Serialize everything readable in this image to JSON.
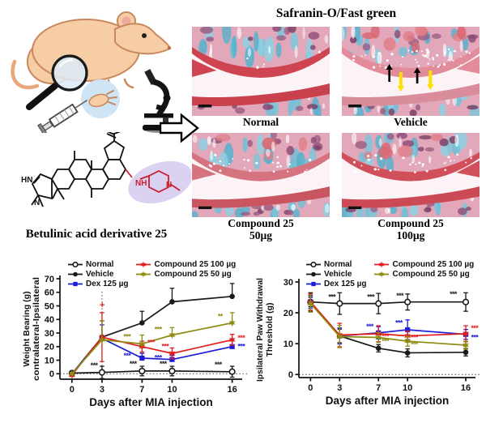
{
  "panel_left": {
    "compound_label": "Betulinic acid derivative 25",
    "structure_atoms": {
      "hn": "HN",
      "n_pyrazole": "N",
      "nh_linker": "NH",
      "n_piperidine": "N"
    },
    "highlight_color": "#b7a4e3",
    "heteroatom_color": "#cc1f2d"
  },
  "histology": {
    "title": "Safranin-O/Fast green",
    "stain_colors": {
      "safranin_red": "#ce4450",
      "fast_green_blue": "#6fc0d8"
    },
    "panels": [
      {
        "id": "normal",
        "caption_line1": "Normal",
        "caption_line2": ""
      },
      {
        "id": "vehicle",
        "caption_line1": "Vehicle",
        "caption_line2": "",
        "markers": [
          "black-up-arrows",
          "yellow-down-arrows"
        ]
      },
      {
        "id": "compound25-50",
        "caption_line1": "Compound 25",
        "caption_line2": "50µg"
      },
      {
        "id": "compound25-100",
        "caption_line1": "Compound 25",
        "caption_line2": "100µg"
      }
    ]
  },
  "chart_data": [
    {
      "type": "line",
      "xlabel": "Days after MIA injection",
      "ylabel_lines": [
        "Weight Bearing (g)",
        "contralateral-Ipsilateral"
      ],
      "x": [
        0,
        3,
        7,
        10,
        16
      ],
      "xlim": [
        -1.2,
        17
      ],
      "ylim": [
        -4,
        70
      ],
      "yticks": [
        0,
        10,
        20,
        30,
        40,
        50,
        60,
        70
      ],
      "grid": false,
      "legend_position": "top",
      "reference_lines": {
        "h_dotted_y": 0,
        "v_dotted_x": 3,
        "v_dotted_ytop": 62
      },
      "series": [
        {
          "name": "Normal",
          "color": "#1a1a1a",
          "marker": "circle-open",
          "err_dir": "both",
          "values": [
            0.5,
            1,
            2,
            2,
            1.5
          ],
          "errors": [
            1.5,
            4.5,
            3.5,
            3.5,
            4
          ]
        },
        {
          "name": "Vehicle",
          "color": "#1a1a1a",
          "marker": "circle",
          "err_dir": "up",
          "values": [
            0,
            27,
            37.5,
            53,
            57
          ],
          "errors": [
            1,
            12,
            8.5,
            10,
            9.5
          ]
        },
        {
          "name": "Dex 125 µg",
          "color": "#1c1cd8",
          "marker": "square",
          "err_dir": "up",
          "values": [
            0,
            26,
            11.5,
            10.5,
            20
          ],
          "errors": [
            1,
            10,
            3.5,
            3,
            5.5
          ]
        },
        {
          "name": "Compound 25 100 µg",
          "color": "#e11d1d",
          "marker": "star",
          "err_dir": "both",
          "values": [
            -1,
            27,
            20,
            15,
            25
          ],
          "errors": [
            1,
            18,
            4,
            4,
            4
          ]
        },
        {
          "name": "Compound 25 50 µg",
          "color": "#8f8c12",
          "marker": "star",
          "err_dir": "up",
          "values": [
            0,
            25,
            22,
            28.5,
            37.5
          ],
          "errors": [
            1,
            14,
            6.5,
            5.5,
            7.5
          ]
        }
      ],
      "annotations": [
        {
          "text": "***",
          "color": "#1a1a1a",
          "x": 2.2,
          "y": 4.5
        },
        {
          "text": "***",
          "color": "#1a1a1a",
          "x": 6.1,
          "y": 5.5
        },
        {
          "text": "***",
          "color": "#1a1a1a",
          "x": 9.1,
          "y": 5.5
        },
        {
          "text": "***",
          "color": "#1a1a1a",
          "x": 14.6,
          "y": 5
        },
        {
          "text": "+",
          "color": "#e11d1d",
          "x": 3,
          "y": 48.5
        },
        {
          "text": "***",
          "color": "#8f8c12",
          "x": 5.5,
          "y": 25.5
        },
        {
          "text": "***",
          "color": "#8f8c12",
          "x": 8.6,
          "y": 31
        },
        {
          "text": "**",
          "color": "#8f8c12",
          "x": 14.8,
          "y": 40.5
        },
        {
          "text": "***",
          "color": "#e11d1d",
          "x": 7.9,
          "y": 21.5
        },
        {
          "text": "***",
          "color": "#e11d1d",
          "x": 9.3,
          "y": 18.5
        },
        {
          "text": "***",
          "color": "#e11d1d",
          "x": 16.9,
          "y": 24.5
        },
        {
          "text": "***",
          "color": "#1c1cd8",
          "x": 5.5,
          "y": 11.5
        },
        {
          "text": "***",
          "color": "#1c1cd8",
          "x": 8.6,
          "y": 10
        },
        {
          "text": "***",
          "color": "#1c1cd8",
          "x": 16.9,
          "y": 18.5
        }
      ]
    },
    {
      "type": "line",
      "xlabel": "Days after MIA injection",
      "ylabel_lines": [
        "Ipsilateral Paw Withdrawal",
        "Threshold (g)"
      ],
      "x": [
        0,
        3,
        7,
        10,
        16
      ],
      "xlim": [
        -1.2,
        17
      ],
      "ylim": [
        -1,
        30
      ],
      "yticks": [
        0,
        10,
        20,
        30
      ],
      "grid": false,
      "legend_position": "top",
      "reference_lines": {
        "h_dotted_y": 0
      },
      "series": [
        {
          "name": "Normal",
          "color": "#1a1a1a",
          "marker": "circle-open",
          "err_dir": "both",
          "values": [
            23.5,
            23,
            23,
            23.5,
            23.5
          ],
          "errors": [
            3,
            3.5,
            3.3,
            2.6,
            3
          ]
        },
        {
          "name": "Vehicle",
          "color": "#1a1a1a",
          "marker": "circle",
          "err_dir": "both",
          "values": [
            23.5,
            12.5,
            8.5,
            7,
            7.2
          ],
          "errors": [
            1.5,
            2.2,
            1.2,
            1.3,
            1.2
          ]
        },
        {
          "name": "Dex 125 µg",
          "color": "#1c1cd8",
          "marker": "square",
          "err_dir": "both",
          "values": [
            23.5,
            12.5,
            13.5,
            14.5,
            13
          ],
          "errors": [
            2,
            2.6,
            2,
            3.2,
            1.6
          ]
        },
        {
          "name": "Compound 25 100 µg",
          "color": "#e11d1d",
          "marker": "star",
          "err_dir": "both",
          "values": [
            23.5,
            12.8,
            13.2,
            12.5,
            13.2
          ],
          "errors": [
            2.6,
            3.8,
            2.6,
            1.6,
            2.6
          ]
        },
        {
          "name": "Compound 25 50 µg",
          "color": "#8f8c12",
          "marker": "star",
          "err_dir": "both",
          "values": [
            23,
            12.3,
            12,
            10.8,
            9.5
          ],
          "errors": [
            2.8,
            3.6,
            1.6,
            1.6,
            1.3
          ]
        }
      ],
      "annotations": [
        {
          "text": "***",
          "color": "#1a1a1a",
          "x": 2.2,
          "y": 24.3
        },
        {
          "text": "***",
          "color": "#1a1a1a",
          "x": 6.2,
          "y": 24.3
        },
        {
          "text": "***",
          "color": "#1a1a1a",
          "x": 9.2,
          "y": 24.8
        },
        {
          "text": "***",
          "color": "#1a1a1a",
          "x": 14.7,
          "y": 25.3
        },
        {
          "text": "***",
          "color": "#1c1cd8",
          "x": 6.1,
          "y": 14.8
        },
        {
          "text": "***",
          "color": "#1c1cd8",
          "x": 9.1,
          "y": 16
        },
        {
          "text": "***",
          "color": "#1c1cd8",
          "x": 16.9,
          "y": 11.2
        },
        {
          "text": "***",
          "color": "#e11d1d",
          "x": 7.7,
          "y": 11.6
        },
        {
          "text": "***",
          "color": "#e11d1d",
          "x": 10.7,
          "y": 11.2
        },
        {
          "text": "***",
          "color": "#e11d1d",
          "x": 16.9,
          "y": 14.3
        },
        {
          "text": "***",
          "color": "#8f8c12",
          "x": 7.7,
          "y": 10
        },
        {
          "text": "***",
          "color": "#8f8c12",
          "x": 10.7,
          "y": 9
        }
      ]
    }
  ]
}
